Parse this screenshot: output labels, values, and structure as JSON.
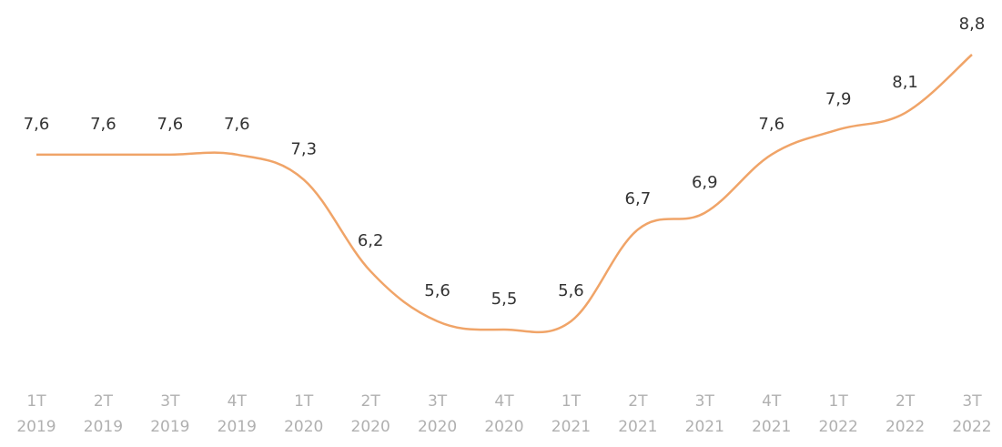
{
  "chart_data": {
    "type": "line",
    "categories": [
      [
        "1T",
        "2019"
      ],
      [
        "2T",
        "2019"
      ],
      [
        "3T",
        "2019"
      ],
      [
        "4T",
        "2019"
      ],
      [
        "1T",
        "2020"
      ],
      [
        "2T",
        "2020"
      ],
      [
        "3T",
        "2020"
      ],
      [
        "4T",
        "2020"
      ],
      [
        "1T",
        "2021"
      ],
      [
        "2T",
        "2021"
      ],
      [
        "3T",
        "2021"
      ],
      [
        "4T",
        "2021"
      ],
      [
        "1T",
        "2022"
      ],
      [
        "2T",
        "2022"
      ],
      [
        "3T",
        "2022"
      ]
    ],
    "series": [
      {
        "color": "#f0a468",
        "values": [
          7.6,
          7.6,
          7.6,
          7.6,
          7.3,
          6.2,
          5.6,
          5.5,
          5.6,
          6.7,
          6.9,
          7.6,
          7.9,
          8.1,
          8.8
        ],
        "value_labels": [
          "7,6",
          "7,6",
          "7,6",
          "7,6",
          "7,3",
          "6,2",
          "5,6",
          "5,5",
          "5,6",
          "6,7",
          "6,9",
          "7,6",
          "7,9",
          "8,1",
          "8,8"
        ]
      }
    ]
  }
}
